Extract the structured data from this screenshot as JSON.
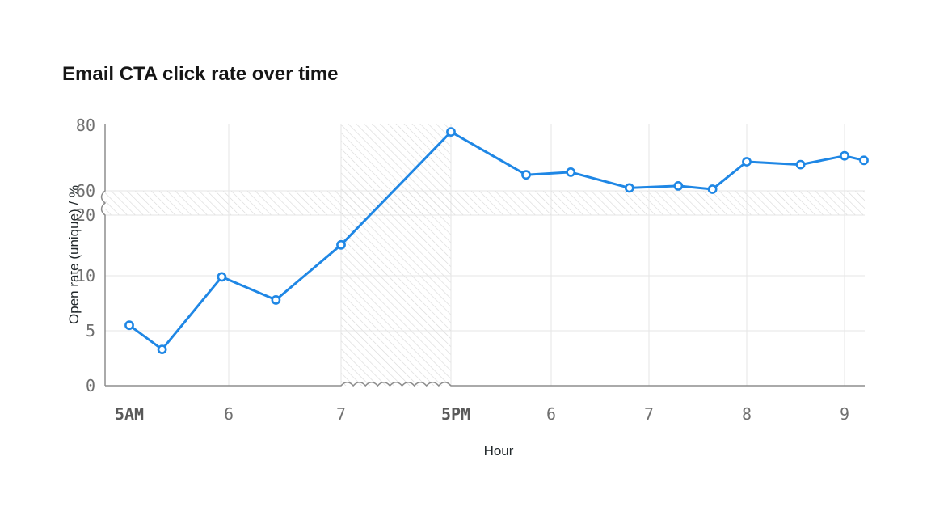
{
  "title": "Email CTA click rate over time",
  "chart_data": {
    "type": "line",
    "title": "Email CTA click rate over time",
    "xlabel": "Hour",
    "ylabel": "Open rate (unique) / %",
    "legend": "none",
    "grid": "on",
    "x_ticks": [
      {
        "hour": 5,
        "label": "5AM",
        "emphasis": true
      },
      {
        "hour": 6,
        "label": "6",
        "emphasis": false
      },
      {
        "hour": 7,
        "label": "7",
        "emphasis": false
      },
      {
        "hour": 17,
        "label": "5PM",
        "emphasis": true
      },
      {
        "hour": 18,
        "label": "6",
        "emphasis": false
      },
      {
        "hour": 19,
        "label": "7",
        "emphasis": false
      },
      {
        "hour": 20,
        "label": "8",
        "emphasis": false
      },
      {
        "hour": 21,
        "label": "9",
        "emphasis": false
      }
    ],
    "y_ticks": [
      0,
      5,
      10,
      20,
      60,
      80
    ],
    "ylim": [
      0,
      80
    ],
    "axis_breaks": {
      "x": {
        "between": [
          "7AM",
          "5PM"
        ],
        "style": "hatched-band-with-wavy-axis"
      },
      "y": {
        "between": [
          20,
          60
        ],
        "style": "hatched-band-with-wavy-axis"
      }
    },
    "series": [
      {
        "name": "Open rate (unique)",
        "points": [
          {
            "hour": 5.0,
            "value": 5.5
          },
          {
            "hour": 5.33,
            "value": 3.3
          },
          {
            "hour": 5.93,
            "value": 9.9
          },
          {
            "hour": 6.42,
            "value": 7.8
          },
          {
            "hour": 7.0,
            "value": 15.1
          },
          {
            "hour": 17.0,
            "value": 78.0
          },
          {
            "hour": 17.75,
            "value": 64.9
          },
          {
            "hour": 18.2,
            "value": 65.7
          },
          {
            "hour": 18.8,
            "value": 60.9
          },
          {
            "hour": 19.3,
            "value": 61.5
          },
          {
            "hour": 19.65,
            "value": 60.5
          },
          {
            "hour": 20.0,
            "value": 68.9
          },
          {
            "hour": 20.55,
            "value": 68.0
          },
          {
            "hour": 21.0,
            "value": 70.7
          },
          {
            "hour": 21.2,
            "value": 69.3
          }
        ]
      }
    ]
  },
  "colors": {
    "line": "#1f87e5",
    "marker_fill": "#ffffff",
    "title_text": "#161616",
    "axis_title_text": "#21272a",
    "tick_text": "#6f6f6f",
    "tick_text_emphasis": "#595959",
    "axis_line": "#8d8d8d",
    "grid_line": "#e5e5e5",
    "hatch_stripe": "#d7d7d7",
    "background": "#ffffff"
  }
}
